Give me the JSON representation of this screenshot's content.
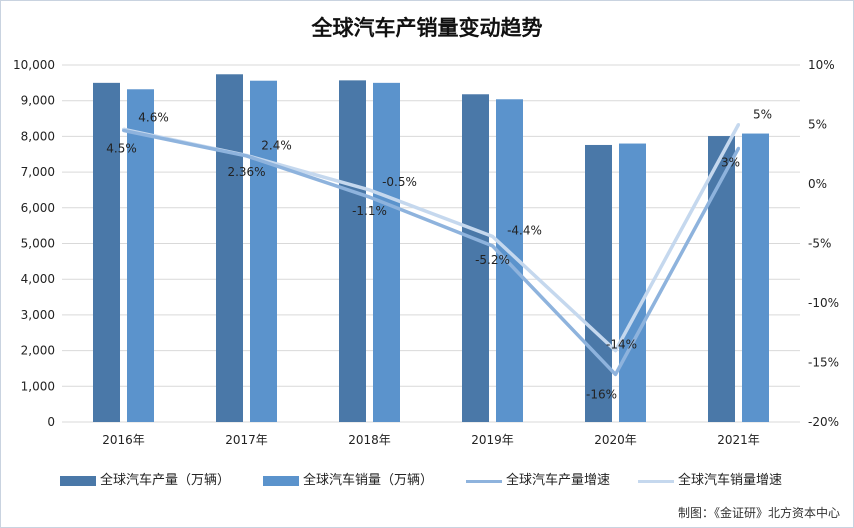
{
  "title": "全球汽车产销量变动趋势",
  "source": "制图：《金证研》北方资本中心",
  "colors": {
    "production_bar": "#4a78a8",
    "sales_bar": "#5b93cc",
    "production_growth_line": "#8eb3dd",
    "sales_growth_line": "#c5d8ee",
    "grid": "#d9d9d9",
    "axis_text": "#222222"
  },
  "chart_data": {
    "type": "bar",
    "categories": [
      "2016年",
      "2017年",
      "2018年",
      "2019年",
      "2020年",
      "2021年"
    ],
    "series": [
      {
        "name": "全球汽车产量（万辆）",
        "type": "bar",
        "axis": "left",
        "values": [
          9500,
          9740,
          9570,
          9180,
          7760,
          8010
        ]
      },
      {
        "name": "全球汽车销量（万辆）",
        "type": "bar",
        "axis": "left",
        "values": [
          9320,
          9560,
          9500,
          9040,
          7800,
          8080
        ]
      },
      {
        "name": "全球汽车产量增速",
        "type": "line",
        "axis": "right",
        "values": [
          4.5,
          2.36,
          -1.1,
          -5.2,
          -16,
          3
        ],
        "labels": [
          "4.5%",
          "2.36%",
          "-1.1%",
          "-5.2%",
          "-16%",
          "3%"
        ]
      },
      {
        "name": "全球汽车销量增速",
        "type": "line",
        "axis": "right",
        "values": [
          4.6,
          2.4,
          -0.5,
          -4.4,
          -14,
          5
        ],
        "labels": [
          "4.6%",
          "2.4%",
          "-0.5%",
          "-4.4%",
          "-14%",
          "5%"
        ]
      }
    ],
    "y_left": {
      "min": 0,
      "max": 10000,
      "ticks": [
        "0",
        "1,000",
        "2,000",
        "3,000",
        "4,000",
        "5,000",
        "6,000",
        "7,000",
        "8,000",
        "9,000",
        "10,000"
      ]
    },
    "y_right": {
      "min": -20,
      "max": 10,
      "ticks": [
        "-20%",
        "-15%",
        "-10%",
        "-5%",
        "0%",
        "5%",
        "10%"
      ]
    },
    "grid": true,
    "legend_position": "bottom"
  }
}
